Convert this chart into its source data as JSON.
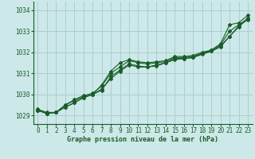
{
  "xlabel": "Graphe pression niveau de la mer (hPa)",
  "ylabel": "",
  "background_color": "#cce8e8",
  "grid_color": "#aacfcf",
  "line_color": "#1a5c2a",
  "xlim": [
    -0.5,
    23.5
  ],
  "ylim": [
    1028.6,
    1034.4
  ],
  "yticks": [
    1029,
    1030,
    1031,
    1032,
    1033,
    1034
  ],
  "xticks": [
    0,
    1,
    2,
    3,
    4,
    5,
    6,
    7,
    8,
    9,
    10,
    11,
    12,
    13,
    14,
    15,
    16,
    17,
    18,
    19,
    20,
    21,
    22,
    23
  ],
  "series": [
    [
      1029.3,
      1029.15,
      1029.15,
      1029.5,
      1029.7,
      1029.9,
      1030.0,
      1030.45,
      1031.1,
      1031.5,
      1031.65,
      1031.55,
      1031.5,
      1031.55,
      1031.6,
      1031.8,
      1031.8,
      1031.85,
      1032.0,
      1032.1,
      1032.4,
      1033.3,
      1033.4,
      1033.75
    ],
    [
      1029.25,
      1029.1,
      1029.15,
      1029.4,
      1029.6,
      1029.85,
      1030.0,
      1030.2,
      1030.85,
      1031.15,
      1031.45,
      1031.35,
      1031.3,
      1031.35,
      1031.5,
      1031.65,
      1031.7,
      1031.75,
      1031.95,
      1032.05,
      1032.25,
      1032.75,
      1033.2,
      1033.6
    ],
    [
      1029.25,
      1029.1,
      1029.15,
      1029.5,
      1029.75,
      1029.95,
      1030.05,
      1030.4,
      1031.0,
      1031.3,
      1031.6,
      1031.5,
      1031.45,
      1031.5,
      1031.55,
      1031.75,
      1031.75,
      1031.8,
      1031.95,
      1032.1,
      1032.35,
      1033.0,
      1033.3,
      1033.6
    ],
    [
      1029.25,
      1029.1,
      1029.15,
      1029.4,
      1029.6,
      1029.85,
      1030.0,
      1030.25,
      1030.75,
      1031.1,
      1031.4,
      1031.3,
      1031.3,
      1031.4,
      1031.5,
      1031.7,
      1031.7,
      1031.75,
      1031.9,
      1032.05,
      1032.3,
      1032.75,
      1033.25,
      1033.55
    ]
  ]
}
